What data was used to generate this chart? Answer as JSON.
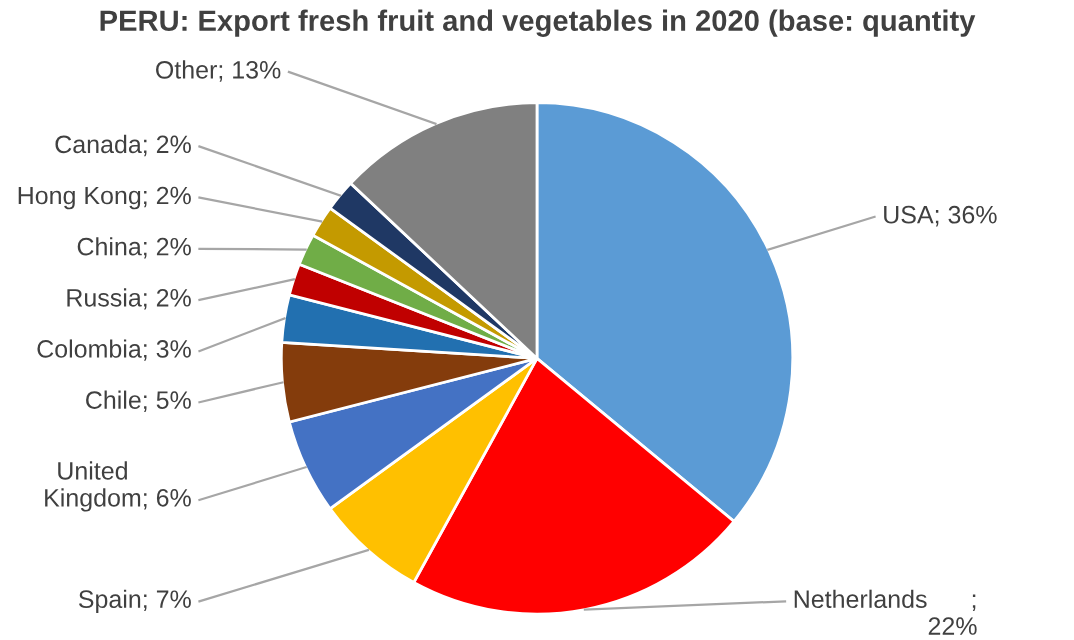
{
  "chart_data": {
    "type": "pie",
    "title": "PERU: Export fresh fruit and vegetables in 2020 (base: quantity",
    "categories": [
      "USA",
      "Netherlands",
      "Spain",
      "United Kingdom",
      "Chile",
      "Colombia",
      "Russia",
      "China",
      "Hong Kong",
      "Canada",
      "Other"
    ],
    "values": [
      36,
      22,
      7,
      6,
      5,
      3,
      2,
      2,
      2,
      2,
      13
    ],
    "value_labels": [
      "; 36%",
      ";\n22%",
      "; 7%",
      "; 6%",
      "; 5%",
      "; 3%",
      "; 2%",
      "; 2%",
      "; 2%",
      "; 2%",
      "; 13%"
    ],
    "colors": [
      "#5b9bd5",
      "#ff0000",
      "#ffc000",
      "#4472c4",
      "#843c0c",
      "#2270b0",
      "#c00000",
      "#70ad47",
      "#c49a00",
      "#1f3864",
      "#808080"
    ]
  }
}
